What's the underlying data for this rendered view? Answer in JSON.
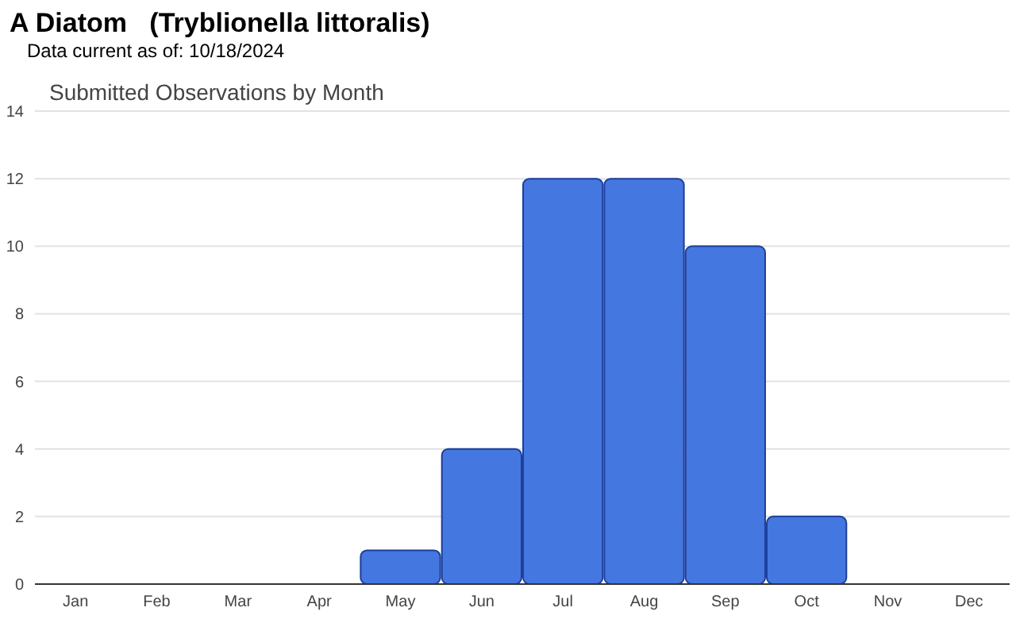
{
  "chart_data": {
    "type": "bar",
    "title": "A Diatom   (Tryblionella littoralis)",
    "subtitle": "Data current as of: 10/18/2024",
    "annotations": [
      "Submitted Observations by Month"
    ],
    "categories": [
      "Jan",
      "Feb",
      "Mar",
      "Apr",
      "May",
      "Jun",
      "Jul",
      "Aug",
      "Sep",
      "Oct",
      "Nov",
      "Dec"
    ],
    "values": [
      0,
      0,
      0,
      0,
      1,
      4,
      12,
      12,
      10,
      2,
      0,
      0
    ],
    "color": "#4577e0",
    "ylim": [
      0,
      14
    ],
    "yticks": [
      0,
      2,
      4,
      6,
      8,
      10,
      12,
      14
    ],
    "grid": "y"
  }
}
